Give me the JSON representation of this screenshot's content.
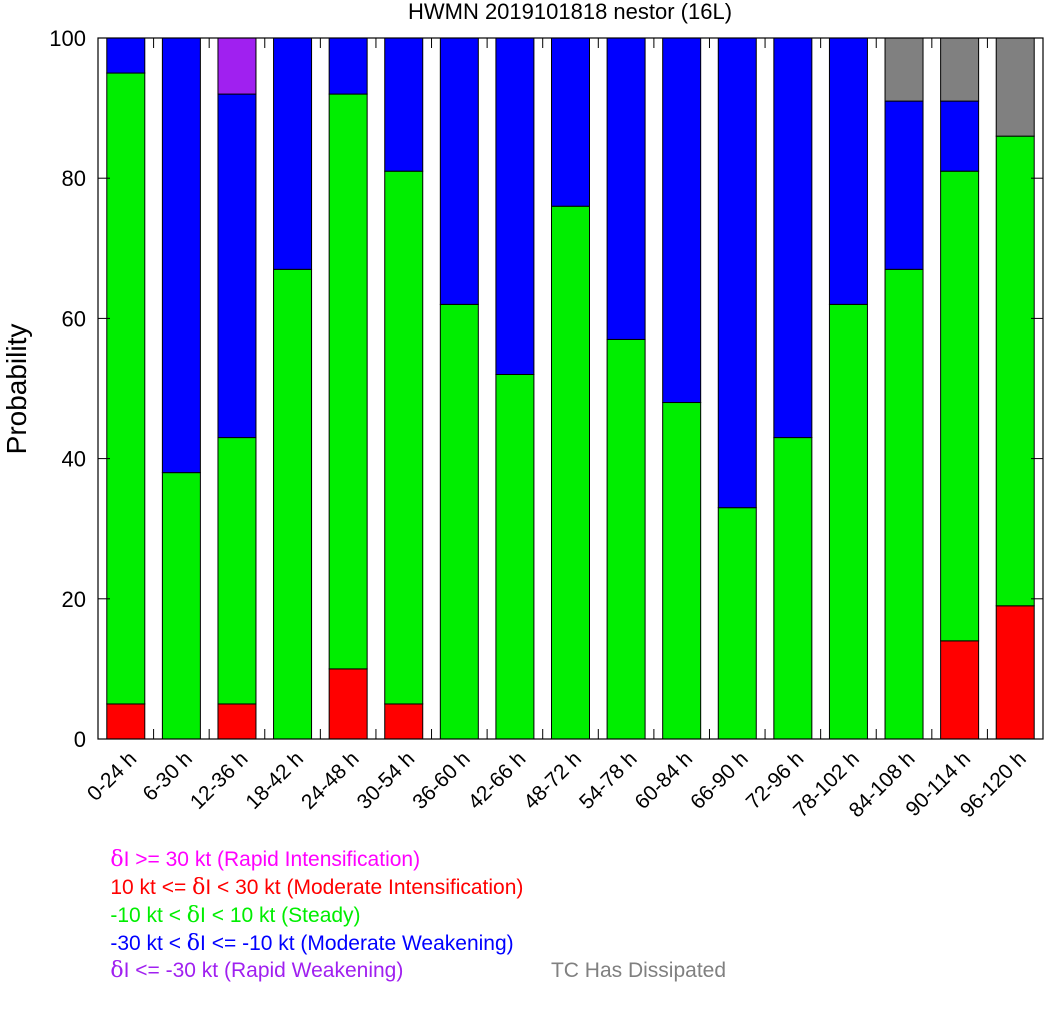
{
  "chart_data": {
    "type": "bar",
    "stacked": true,
    "title": "HWMN 2019101818 nestor (16L)",
    "xlabel": "",
    "ylabel": "Probability",
    "ylim": [
      0,
      100
    ],
    "yticks": [
      0,
      20,
      40,
      60,
      80,
      100
    ],
    "grid": false,
    "categories": [
      "0-24 h",
      "6-30 h",
      "12-36 h",
      "18-42 h",
      "24-48 h",
      "30-54 h",
      "36-60 h",
      "42-66 h",
      "48-72 h",
      "54-78 h",
      "60-84 h",
      "66-90 h",
      "72-96 h",
      "78-102 h",
      "84-108 h",
      "90-114 h",
      "96-120 h"
    ],
    "series": [
      {
        "name": "Rapid Intensification",
        "color": "#ff00ff",
        "values": [
          0,
          0,
          0,
          0,
          0,
          0,
          0,
          0,
          0,
          0,
          0,
          0,
          0,
          0,
          0,
          0,
          0
        ]
      },
      {
        "name": "Moderate Intensification",
        "color": "#ff0000",
        "values": [
          5,
          0,
          5,
          0,
          10,
          5,
          0,
          0,
          0,
          0,
          0,
          0,
          0,
          0,
          0,
          14,
          19
        ]
      },
      {
        "name": "Steady",
        "color": "#00ee00",
        "values": [
          90,
          38,
          38,
          67,
          82,
          76,
          62,
          52,
          76,
          57,
          48,
          33,
          43,
          62,
          67,
          67,
          67
        ]
      },
      {
        "name": "Moderate Weakening",
        "color": "#0000ff",
        "values": [
          5,
          62,
          49,
          33,
          8,
          19,
          38,
          48,
          24,
          43,
          52,
          67,
          57,
          38,
          24,
          10,
          0
        ]
      },
      {
        "name": "Rapid Weakening",
        "color": "#a020f0",
        "values": [
          0,
          0,
          8,
          0,
          0,
          0,
          0,
          0,
          0,
          0,
          0,
          0,
          0,
          0,
          0,
          0,
          0
        ]
      },
      {
        "name": "TC Has Dissipated",
        "color": "#808080",
        "values": [
          0,
          0,
          0,
          0,
          0,
          0,
          0,
          0,
          0,
          0,
          0,
          0,
          0,
          0,
          9,
          9,
          14
        ]
      }
    ]
  },
  "legend": [
    {
      "symbol": "δ",
      "text": "I >= 30 kt (Rapid Intensification)",
      "color": "#ff00ff"
    },
    {
      "prefix": "10 kt <= ",
      "symbol": "δ",
      "text": "I < 30 kt (Moderate Intensification)",
      "color": "#ff0000"
    },
    {
      "prefix": "-10 kt < ",
      "symbol": "δ",
      "text": "I < 10 kt (Steady)",
      "color": "#00ee00"
    },
    {
      "prefix": "-30 kt < ",
      "symbol": "δ",
      "text": "I <= -10 kt (Moderate Weakening)",
      "color": "#0000ff"
    },
    {
      "symbol": "δ",
      "text": "I <= -30 kt (Rapid Weakening)",
      "color": "#a020f0"
    }
  ],
  "dissipated_label": {
    "text": "TC Has Dissipated",
    "color": "#808080"
  }
}
